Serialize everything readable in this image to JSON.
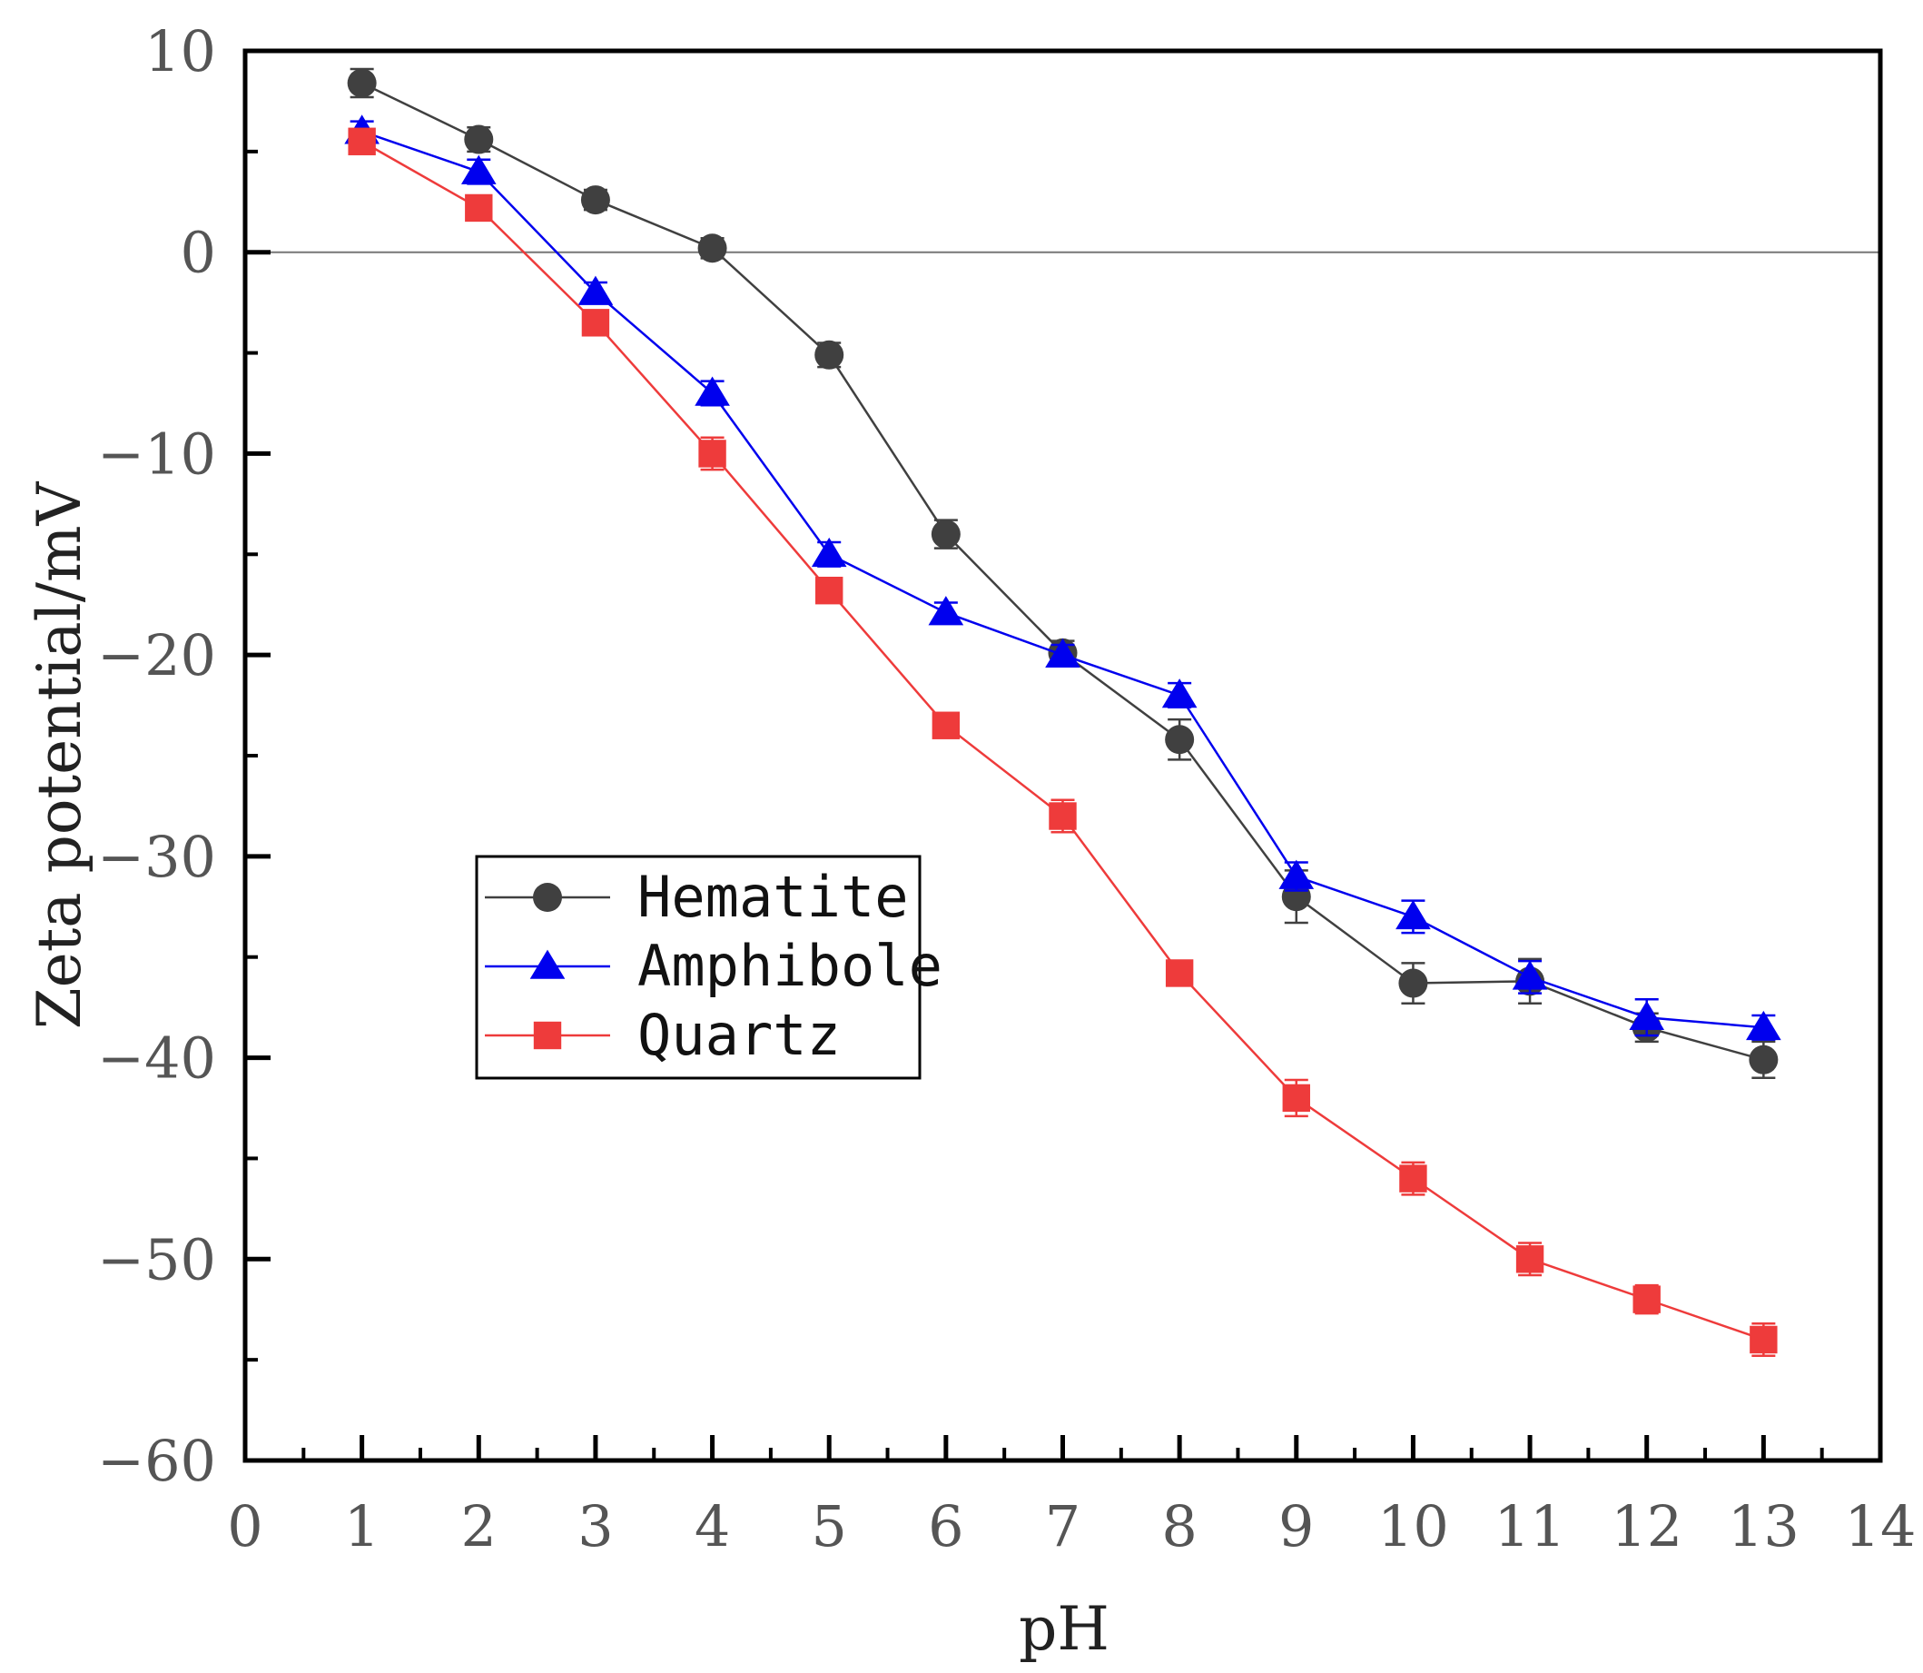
{
  "chart_data": {
    "type": "line",
    "title": "",
    "xlabel": "pH",
    "ylabel": "Zeta potential/mV",
    "xlim": [
      0,
      14
    ],
    "ylim": [
      -60,
      10
    ],
    "xticks": [
      0,
      1,
      2,
      3,
      4,
      5,
      6,
      7,
      8,
      9,
      10,
      11,
      12,
      13,
      14
    ],
    "yticks": [
      10,
      0,
      -10,
      -20,
      -30,
      -40,
      -50,
      -60
    ],
    "ytick_labels": [
      "10",
      "0",
      "−10",
      "−20",
      "−30",
      "−40",
      "−50",
      "−60"
    ],
    "zero_line": true,
    "grid": false,
    "legend_position": "middle-left",
    "series": [
      {
        "name": "Hematite",
        "color": "#404040",
        "marker": "circle",
        "x": [
          1,
          2,
          3,
          4,
          5,
          6,
          7,
          8,
          9,
          10,
          11,
          12,
          13
        ],
        "y": [
          8.4,
          5.6,
          2.6,
          0.2,
          -5.1,
          -14.0,
          -19.9,
          -24.2,
          -32.0,
          -36.3,
          -36.2,
          -38.5,
          -40.1
        ],
        "err": [
          0.7,
          0.6,
          0.5,
          0.5,
          0.6,
          0.7,
          0.6,
          1.0,
          1.3,
          1.0,
          1.1,
          0.7,
          0.9
        ]
      },
      {
        "name": "Amphibole",
        "color": "#0000ee",
        "marker": "triangle",
        "x": [
          1,
          2,
          3,
          4,
          5,
          6,
          7,
          8,
          9,
          10,
          11,
          12,
          13
        ],
        "y": [
          6.0,
          4.0,
          -2.0,
          -7.0,
          -15.0,
          -17.9,
          -20.0,
          -22.0,
          -31.0,
          -33.0,
          -36.0,
          -38.0,
          -38.5
        ],
        "err": [
          0.5,
          0.6,
          0.5,
          0.6,
          0.6,
          0.5,
          0.5,
          0.6,
          0.7,
          0.8,
          0.8,
          0.9,
          0.6
        ]
      },
      {
        "name": "Quartz",
        "color": "#ee3b3b",
        "marker": "square",
        "x": [
          1,
          2,
          3,
          4,
          5,
          6,
          7,
          8,
          9,
          10,
          11,
          12,
          13
        ],
        "y": [
          5.5,
          2.2,
          -3.5,
          -10.0,
          -16.8,
          -23.5,
          -28.0,
          -35.8,
          -42.0,
          -46.0,
          -50.0,
          -52.0,
          -54.0
        ],
        "err": [
          0.4,
          0.4,
          0.4,
          0.8,
          0.6,
          0.4,
          0.8,
          0.4,
          0.9,
          0.8,
          0.8,
          0.7,
          0.8
        ]
      }
    ]
  }
}
